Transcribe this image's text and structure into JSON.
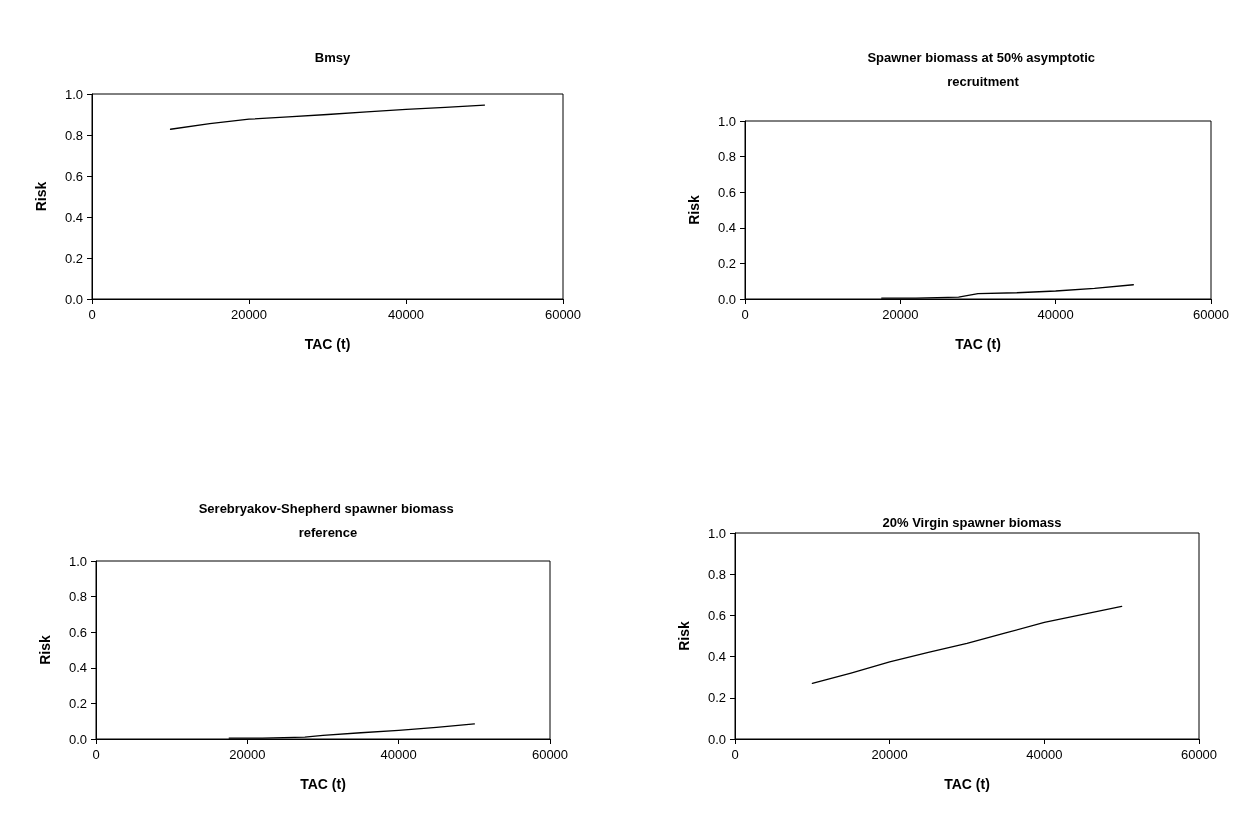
{
  "chart_data": [
    {
      "type": "line",
      "title": "Bmsy",
      "xlabel": "TAC (t)",
      "ylabel": "Risk",
      "xlim": [
        0,
        60000
      ],
      "xticks": [
        0,
        20000,
        40000,
        60000
      ],
      "ylim": [
        0,
        1
      ],
      "yticks": [
        {
          "value": 0,
          "label": "0.0"
        },
        {
          "value": 0.2,
          "label": "0.2"
        },
        {
          "value": 0.4,
          "label": "0.4"
        },
        {
          "value": 0.6,
          "label": "0.6"
        },
        {
          "value": 0.8,
          "label": "0.8"
        },
        {
          "value": 1,
          "label": "1.0"
        }
      ],
      "grid": false,
      "marker": "none",
      "line_style": "solid",
      "series": [
        {
          "color": "#000000",
          "x": [
            10000,
            15000,
            20000,
            25000,
            30000,
            35000,
            40000,
            45000,
            50000
          ],
          "values": [
            0.828,
            0.855,
            0.877,
            0.888,
            0.9,
            0.913,
            0.925,
            0.935,
            0.946
          ]
        }
      ]
    },
    {
      "type": "line",
      "title": "Spawner biomass at 50% asymptotic recruitment",
      "xlabel": "TAC (t)",
      "ylabel": "Risk",
      "xlim": [
        0,
        60000
      ],
      "xticks": [
        0,
        20000,
        40000,
        60000
      ],
      "ylim": [
        0,
        1
      ],
      "yticks": [
        {
          "value": 0,
          "label": "0.0"
        },
        {
          "value": 0.2,
          "label": "0.2"
        },
        {
          "value": 0.4,
          "label": "0.4"
        },
        {
          "value": 0.6,
          "label": "0.6"
        },
        {
          "value": 0.8,
          "label": "0.8"
        },
        {
          "value": 1,
          "label": "1.0"
        }
      ],
      "grid": false,
      "marker": "none",
      "line_style": "solid",
      "series": [
        {
          "color": "#000000",
          "x": [
            17600,
            22000,
            27500,
            30000,
            35000,
            40000,
            45000,
            50000
          ],
          "values": [
            0.005,
            0.005,
            0.01,
            0.03,
            0.035,
            0.045,
            0.06,
            0.08
          ]
        }
      ]
    },
    {
      "type": "line",
      "title": "Serebryakov-Shepherd spawner biomass reference",
      "xlabel": "TAC (t)",
      "ylabel": "Risk",
      "xlim": [
        0,
        60000
      ],
      "xticks": [
        0,
        20000,
        40000,
        60000
      ],
      "ylim": [
        0,
        1
      ],
      "yticks": [
        {
          "value": 0,
          "label": "0.0"
        },
        {
          "value": 0.2,
          "label": "0.2"
        },
        {
          "value": 0.4,
          "label": "0.4"
        },
        {
          "value": 0.6,
          "label": "0.6"
        },
        {
          "value": 0.8,
          "label": "0.8"
        },
        {
          "value": 1,
          "label": "1.0"
        }
      ],
      "grid": false,
      "marker": "none",
      "line_style": "solid",
      "series": [
        {
          "color": "#000000",
          "x": [
            17600,
            22000,
            27600,
            30000,
            35000,
            40000,
            45000,
            50000
          ],
          "values": [
            0.005,
            0.005,
            0.01,
            0.02,
            0.035,
            0.048,
            0.065,
            0.085
          ]
        }
      ]
    },
    {
      "type": "line",
      "title": "20% Virgin spawner biomass",
      "xlabel": "TAC (t)",
      "ylabel": "Risk",
      "xlim": [
        0,
        60000
      ],
      "xticks": [
        0,
        20000,
        40000,
        60000
      ],
      "ylim": [
        0,
        1
      ],
      "yticks": [
        {
          "value": 0,
          "label": "0.0"
        },
        {
          "value": 0.2,
          "label": "0.2"
        },
        {
          "value": 0.4,
          "label": "0.4"
        },
        {
          "value": 0.6,
          "label": "0.6"
        },
        {
          "value": 0.8,
          "label": "0.8"
        },
        {
          "value": 1,
          "label": "1.0"
        }
      ],
      "grid": false,
      "marker": "none",
      "line_style": "solid",
      "series": [
        {
          "color": "#000000",
          "x": [
            10000,
            15000,
            20000,
            25000,
            30000,
            35000,
            40000,
            45000,
            50000
          ],
          "values": [
            0.27,
            0.32,
            0.374,
            0.42,
            0.464,
            0.515,
            0.566,
            0.605,
            0.644
          ]
        }
      ]
    }
  ]
}
